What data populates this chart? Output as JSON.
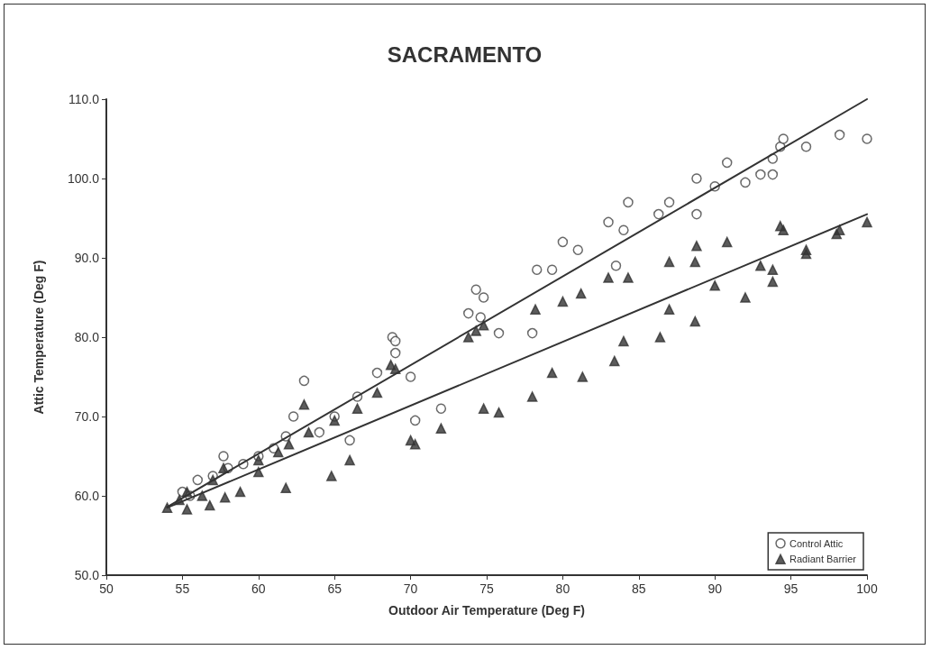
{
  "chart_data": {
    "type": "scatter",
    "title": "SACRAMENTO",
    "xlabel": "Outdoor Air Temperature (Deg F)",
    "ylabel": "Attic Temperature (Deg F)",
    "xlim": [
      50,
      100
    ],
    "xticks": [
      50,
      55,
      60,
      65,
      70,
      75,
      80,
      85,
      90,
      95,
      100
    ],
    "ylim": [
      50,
      110
    ],
    "yticks": [
      {
        "value": 50,
        "label": "50.0"
      },
      {
        "value": 60,
        "label": "60.0"
      },
      {
        "value": 70,
        "label": "70.0"
      },
      {
        "value": 80,
        "label": "80.0"
      },
      {
        "value": 90,
        "label": "90.0"
      },
      {
        "value": 100,
        "label": "100.0"
      },
      {
        "value": 110,
        "label": "110.0"
      }
    ],
    "grid": false,
    "legend": "bottom right",
    "series": [
      {
        "name": "Control Attic",
        "color": "#444444",
        "marker": "circle",
        "x": [
          55,
          55.5,
          56,
          57,
          57.7,
          58,
          59,
          60,
          61,
          61.8,
          62.3,
          63,
          64,
          65,
          66,
          66.5,
          67.8,
          68.8,
          69,
          69,
          70,
          70.3,
          72,
          73.8,
          74.3,
          74.8,
          74.6,
          75.8,
          78,
          78.3,
          79.3,
          80,
          81,
          83,
          83.5,
          84,
          84.3,
          86.3,
          87,
          88.8,
          88.8,
          90,
          90.8,
          92,
          93,
          93.8,
          93.8,
          94.3,
          94.5,
          96,
          98.2,
          100
        ],
        "values": [
          60.5,
          60,
          62,
          62.5,
          65,
          63.5,
          64,
          65,
          66,
          67.5,
          70,
          74.5,
          68,
          70,
          67,
          72.5,
          75.5,
          80,
          79.5,
          78,
          75,
          69.5,
          71,
          83,
          86,
          85,
          82.5,
          80.5,
          80.5,
          88.5,
          88.5,
          92,
          91,
          94.5,
          89,
          93.5,
          97,
          95.5,
          97,
          100,
          95.5,
          99,
          102,
          99.5,
          100.5,
          100.5,
          102.5,
          104,
          105,
          104,
          105.5,
          105
        ]
      },
      {
        "name": "Radiant Barrier",
        "color": "#333333",
        "marker": "triangle",
        "x": [
          54,
          54.8,
          55.3,
          55.3,
          56.3,
          56.8,
          57,
          57.7,
          57.8,
          58.8,
          60,
          60,
          61.3,
          61.8,
          62,
          63,
          63.3,
          64.8,
          65,
          66,
          66.5,
          67.8,
          68.7,
          69,
          70,
          70.3,
          72,
          73.8,
          74.3,
          74.8,
          74.8,
          75.8,
          78,
          78.2,
          79.3,
          80,
          81.2,
          81.3,
          83,
          83.4,
          84,
          84.3,
          86.4,
          87,
          87,
          88.7,
          88.8,
          88.7,
          90,
          90.8,
          92,
          93,
          93.8,
          93.8,
          94.3,
          94.5,
          96,
          96,
          98,
          98.2,
          100
        ],
        "values": [
          58.5,
          59.5,
          60.5,
          58.3,
          60,
          58.8,
          62,
          63.5,
          59.8,
          60.5,
          63,
          64.5,
          65.5,
          61,
          66.5,
          71.5,
          68,
          62.5,
          69.5,
          64.5,
          71,
          73,
          76.5,
          76,
          67,
          66.5,
          68.5,
          80,
          80.8,
          81.5,
          71,
          70.5,
          72.5,
          83.5,
          75.5,
          84.5,
          85.5,
          75,
          87.5,
          77,
          79.5,
          87.5,
          80,
          89.5,
          83.5,
          89.5,
          91.5,
          82,
          86.5,
          92,
          85,
          89,
          88.5,
          87,
          94,
          93.5,
          91,
          90.5,
          93,
          93.5,
          94.5
        ]
      },
      {
        "type": "line",
        "color": "#333333",
        "line_style": "solid",
        "marker": "none",
        "x": [
          54,
          100
        ],
        "values": [
          58.6,
          110
        ]
      },
      {
        "type": "line",
        "color": "#333333",
        "line_style": "solid",
        "marker": "none",
        "x": [
          54,
          100
        ],
        "values": [
          58.5,
          95.5
        ]
      }
    ]
  }
}
